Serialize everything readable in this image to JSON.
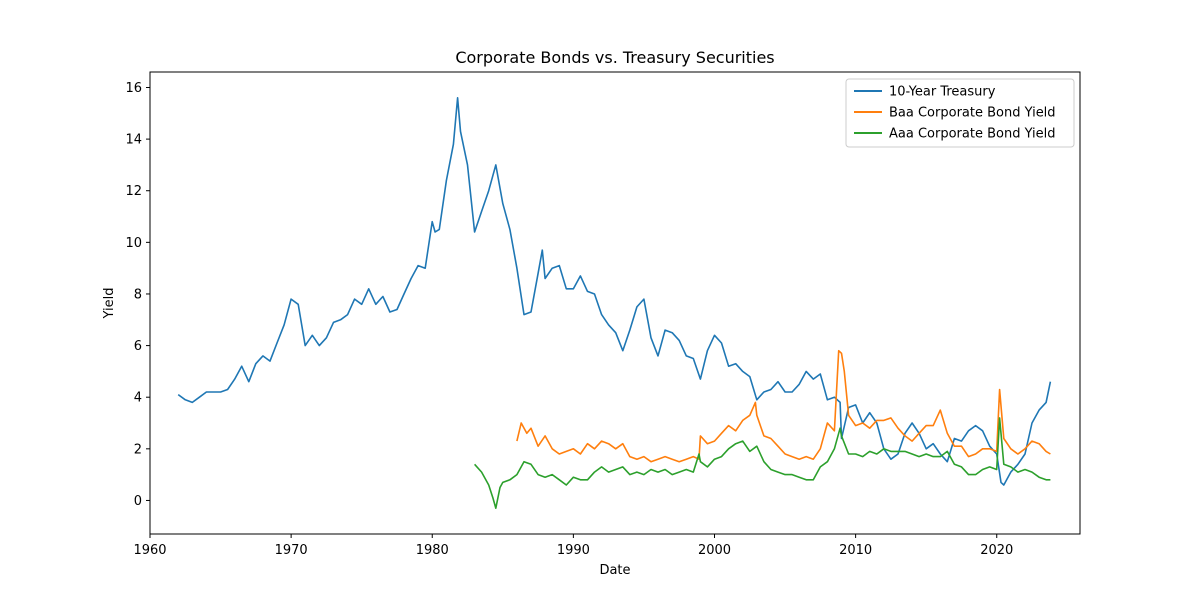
{
  "chart_data": {
    "type": "line",
    "title": "Corporate Bonds vs. Treasury Securities",
    "xlabel": "Date",
    "ylabel": "Yield",
    "xlim": [
      1960.0,
      2025.9
    ],
    "ylim": [
      -1.3,
      16.6
    ],
    "xticks": [
      1960,
      1970,
      1980,
      1990,
      2000,
      2010,
      2020
    ],
    "yticks": [
      0,
      2,
      4,
      6,
      8,
      10,
      12,
      14,
      16
    ],
    "grid": false,
    "legend_position": "upper-right",
    "series": [
      {
        "name": "10-Year Treasury",
        "color": "#1f77b4",
        "x": [
          1962.0,
          1962.5,
          1963.0,
          1963.5,
          1964.0,
          1964.5,
          1965.0,
          1965.5,
          1966.0,
          1966.5,
          1967.0,
          1967.5,
          1968.0,
          1968.5,
          1969.0,
          1969.5,
          1970.0,
          1970.5,
          1971.0,
          1971.5,
          1972.0,
          1972.5,
          1973.0,
          1973.5,
          1974.0,
          1974.5,
          1975.0,
          1975.5,
          1976.0,
          1976.5,
          1977.0,
          1977.5,
          1978.0,
          1978.5,
          1979.0,
          1979.5,
          1980.0,
          1980.2,
          1980.5,
          1981.0,
          1981.5,
          1981.8,
          1982.0,
          1982.5,
          1983.0,
          1983.5,
          1984.0,
          1984.5,
          1985.0,
          1985.5,
          1986.0,
          1986.5,
          1987.0,
          1987.5,
          1987.8,
          1988.0,
          1988.5,
          1989.0,
          1989.5,
          1990.0,
          1990.5,
          1991.0,
          1991.5,
          1992.0,
          1992.5,
          1993.0,
          1993.5,
          1994.0,
          1994.5,
          1995.0,
          1995.5,
          1996.0,
          1996.5,
          1997.0,
          1997.5,
          1998.0,
          1998.5,
          1999.0,
          1999.5,
          2000.0,
          2000.5,
          2001.0,
          2001.5,
          2002.0,
          2002.5,
          2003.0,
          2003.5,
          2004.0,
          2004.5,
          2005.0,
          2005.5,
          2006.0,
          2006.5,
          2007.0,
          2007.5,
          2008.0,
          2008.5,
          2008.9,
          2009.0,
          2009.5,
          2010.0,
          2010.5,
          2011.0,
          2011.5,
          2012.0,
          2012.5,
          2013.0,
          2013.5,
          2014.0,
          2014.5,
          2015.0,
          2015.5,
          2016.0,
          2016.5,
          2017.0,
          2017.5,
          2018.0,
          2018.5,
          2019.0,
          2019.5,
          2020.0,
          2020.3,
          2020.5,
          2021.0,
          2021.5,
          2022.0,
          2022.5,
          2023.0,
          2023.5,
          2023.8
        ],
        "y": [
          4.1,
          3.9,
          3.8,
          4.0,
          4.2,
          4.2,
          4.2,
          4.3,
          4.7,
          5.2,
          4.6,
          5.3,
          5.6,
          5.4,
          6.1,
          6.8,
          7.8,
          7.6,
          6.0,
          6.4,
          6.0,
          6.3,
          6.9,
          7.0,
          7.2,
          7.8,
          7.6,
          8.2,
          7.6,
          7.9,
          7.3,
          7.4,
          8.0,
          8.6,
          9.1,
          9.0,
          10.8,
          10.4,
          10.5,
          12.4,
          13.8,
          15.6,
          14.3,
          13.0,
          10.4,
          11.2,
          12.0,
          13.0,
          11.5,
          10.5,
          9.0,
          7.2,
          7.3,
          8.8,
          9.7,
          8.6,
          9.0,
          9.1,
          8.2,
          8.2,
          8.7,
          8.1,
          8.0,
          7.2,
          6.8,
          6.5,
          5.8,
          6.6,
          7.5,
          7.8,
          6.3,
          5.6,
          6.6,
          6.5,
          6.2,
          5.6,
          5.5,
          4.7,
          5.8,
          6.4,
          6.1,
          5.2,
          5.3,
          5.0,
          4.8,
          3.9,
          4.2,
          4.3,
          4.6,
          4.2,
          4.2,
          4.5,
          5.0,
          4.7,
          4.9,
          3.9,
          4.0,
          3.8,
          2.4,
          3.6,
          3.7,
          3.0,
          3.4,
          3.0,
          2.0,
          1.6,
          1.8,
          2.6,
          3.0,
          2.6,
          2.0,
          2.2,
          1.8,
          1.5,
          2.4,
          2.3,
          2.7,
          2.9,
          2.7,
          2.1,
          1.8,
          0.7,
          0.6,
          1.1,
          1.4,
          1.8,
          3.0,
          3.5,
          3.8,
          4.6
        ]
      },
      {
        "name": "Baa Corporate Bond Yield",
        "color": "#ff7f0e",
        "x": [
          1986.0,
          1986.3,
          1986.7,
          1987.0,
          1987.5,
          1988.0,
          1988.5,
          1989.0,
          1989.5,
          1990.0,
          1990.5,
          1991.0,
          1991.5,
          1992.0,
          1992.5,
          1993.0,
          1993.5,
          1994.0,
          1994.5,
          1995.0,
          1995.5,
          1996.0,
          1996.5,
          1997.0,
          1997.5,
          1998.0,
          1998.5,
          1998.9,
          1999.0,
          1999.5,
          2000.0,
          2000.5,
          2001.0,
          2001.5,
          2002.0,
          2002.5,
          2002.9,
          2003.0,
          2003.5,
          2004.0,
          2004.5,
          2005.0,
          2005.5,
          2006.0,
          2006.5,
          2007.0,
          2007.5,
          2008.0,
          2008.5,
          2008.8,
          2009.0,
          2009.2,
          2009.5,
          2010.0,
          2010.5,
          2011.0,
          2011.5,
          2012.0,
          2012.5,
          2013.0,
          2013.5,
          2014.0,
          2014.5,
          2015.0,
          2015.5,
          2016.0,
          2016.5,
          2017.0,
          2017.5,
          2018.0,
          2018.5,
          2019.0,
          2019.5,
          2020.0,
          2020.2,
          2020.5,
          2021.0,
          2021.5,
          2022.0,
          2022.5,
          2023.0,
          2023.5,
          2023.8
        ],
        "y": [
          2.3,
          3.0,
          2.6,
          2.8,
          2.1,
          2.5,
          2.0,
          1.8,
          1.9,
          2.0,
          1.8,
          2.2,
          2.0,
          2.3,
          2.2,
          2.0,
          2.2,
          1.7,
          1.6,
          1.7,
          1.5,
          1.6,
          1.7,
          1.6,
          1.5,
          1.6,
          1.7,
          1.6,
          2.5,
          2.2,
          2.3,
          2.6,
          2.9,
          2.7,
          3.1,
          3.3,
          3.8,
          3.3,
          2.5,
          2.4,
          2.1,
          1.8,
          1.7,
          1.6,
          1.7,
          1.6,
          2.0,
          3.0,
          2.7,
          5.8,
          5.7,
          5.0,
          3.3,
          2.9,
          3.0,
          2.8,
          3.1,
          3.1,
          3.2,
          2.8,
          2.5,
          2.3,
          2.6,
          2.9,
          2.9,
          3.5,
          2.6,
          2.1,
          2.1,
          1.7,
          1.8,
          2.0,
          2.0,
          1.9,
          4.3,
          2.4,
          2.0,
          1.8,
          2.0,
          2.3,
          2.2,
          1.9,
          1.8
        ]
      },
      {
        "name": "Aaa Corporate Bond Yield",
        "color": "#2ca02c",
        "x": [
          1983.0,
          1983.5,
          1984.0,
          1984.3,
          1984.5,
          1984.8,
          1985.0,
          1985.5,
          1986.0,
          1986.5,
          1987.0,
          1987.5,
          1988.0,
          1988.5,
          1989.0,
          1989.5,
          1990.0,
          1990.5,
          1991.0,
          1991.5,
          1992.0,
          1992.5,
          1993.0,
          1993.5,
          1994.0,
          1994.5,
          1995.0,
          1995.5,
          1996.0,
          1996.5,
          1997.0,
          1997.5,
          1998.0,
          1998.5,
          1998.9,
          1999.0,
          1999.5,
          2000.0,
          2000.5,
          2001.0,
          2001.5,
          2002.0,
          2002.5,
          2003.0,
          2003.5,
          2004.0,
          2004.5,
          2005.0,
          2005.5,
          2006.0,
          2006.5,
          2007.0,
          2007.5,
          2008.0,
          2008.5,
          2008.9,
          2009.0,
          2009.5,
          2010.0,
          2010.5,
          2011.0,
          2011.5,
          2012.0,
          2012.5,
          2013.0,
          2013.5,
          2014.0,
          2014.5,
          2015.0,
          2015.5,
          2016.0,
          2016.5,
          2017.0,
          2017.5,
          2018.0,
          2018.5,
          2019.0,
          2019.5,
          2020.0,
          2020.2,
          2020.5,
          2021.0,
          2021.5,
          2022.0,
          2022.5,
          2023.0,
          2023.5,
          2023.8
        ],
        "y": [
          1.4,
          1.1,
          0.6,
          0.1,
          -0.3,
          0.5,
          0.7,
          0.8,
          1.0,
          1.5,
          1.4,
          1.0,
          0.9,
          1.0,
          0.8,
          0.6,
          0.9,
          0.8,
          0.8,
          1.1,
          1.3,
          1.1,
          1.2,
          1.3,
          1.0,
          1.1,
          1.0,
          1.2,
          1.1,
          1.2,
          1.0,
          1.1,
          1.2,
          1.1,
          1.8,
          1.5,
          1.3,
          1.6,
          1.7,
          2.0,
          2.2,
          2.3,
          1.9,
          2.1,
          1.5,
          1.2,
          1.1,
          1.0,
          1.0,
          0.9,
          0.8,
          0.8,
          1.3,
          1.5,
          2.0,
          2.8,
          2.5,
          1.8,
          1.8,
          1.7,
          1.9,
          1.8,
          2.0,
          1.9,
          1.9,
          1.9,
          1.8,
          1.7,
          1.8,
          1.7,
          1.7,
          1.9,
          1.4,
          1.3,
          1.0,
          1.0,
          1.2,
          1.3,
          1.2,
          3.2,
          1.4,
          1.3,
          1.1,
          1.2,
          1.1,
          0.9,
          0.8,
          0.8
        ]
      }
    ]
  }
}
